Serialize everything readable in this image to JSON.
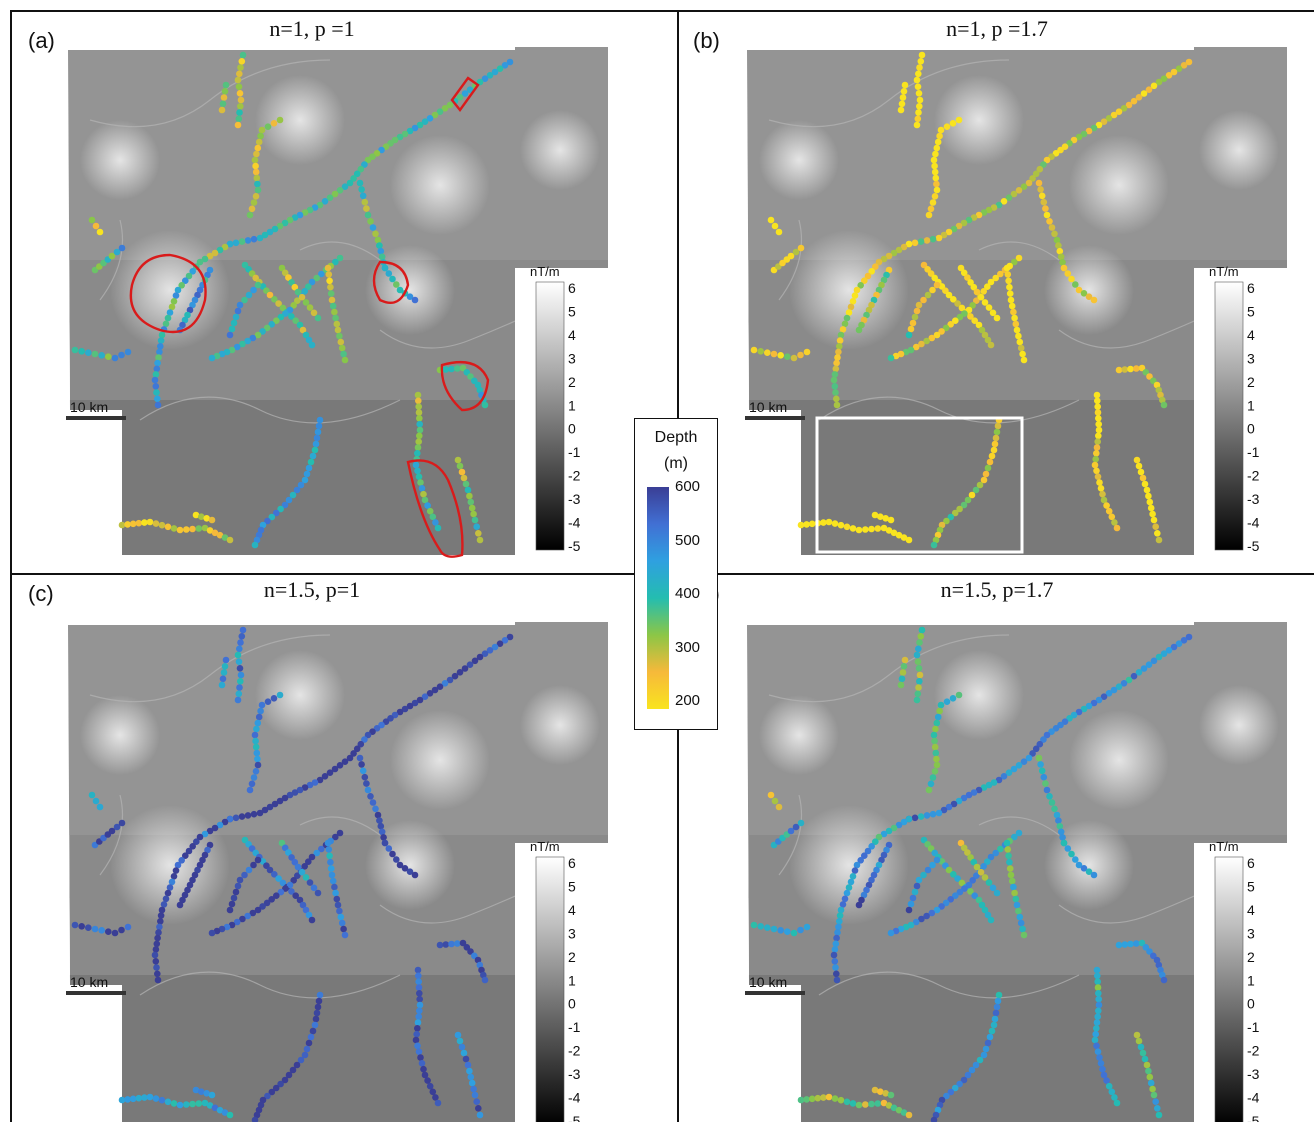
{
  "panels": [
    {
      "id": "a",
      "label": "(a)",
      "title": "n=1, p =1",
      "mode": "a"
    },
    {
      "id": "b",
      "label": "(b)",
      "title": "n=1, p =1.7",
      "mode": "b"
    },
    {
      "id": "c",
      "label": "(c)",
      "title": "n=1.5, p=1",
      "mode": "c"
    },
    {
      "id": "d",
      "label": "(d)",
      "title": "n=1.5, p=1.7",
      "mode": "d"
    }
  ],
  "map_colorbar": {
    "unit": "nT/m",
    "ticks": [
      "6",
      "5",
      "4",
      "3",
      "2",
      "1",
      "0",
      "-1",
      "-2",
      "-3",
      "-4",
      "-5"
    ],
    "range": [
      -5,
      6
    ]
  },
  "scale_bar": {
    "label": "10 km"
  },
  "depth_legend": {
    "title": "Depth",
    "unit": "(m)",
    "ticks": [
      "600",
      "500",
      "400",
      "300",
      "200"
    ],
    "range": [
      200,
      600
    ],
    "colors": [
      "#f9e41f",
      "#f6b93a",
      "#8cc646",
      "#24bdb0",
      "#2fa0e0",
      "#4170d4",
      "#3a3e95"
    ]
  },
  "annotation_colors": {
    "highlight": "#d91b1b",
    "inset_box": "#ffffff"
  }
}
